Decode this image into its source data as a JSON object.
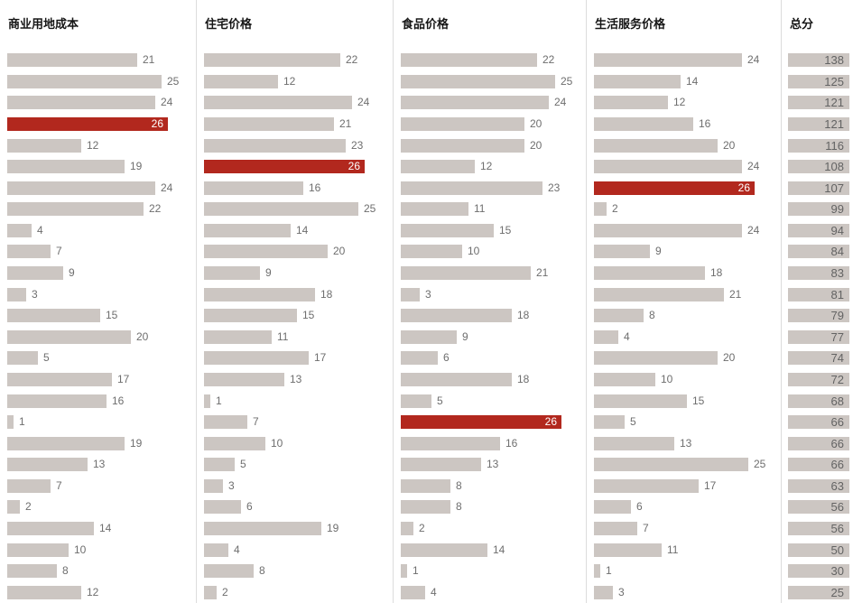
{
  "chart_data": {
    "type": "bar",
    "layout": "small-multiples-horizontal-ranking",
    "orientation": "horizontal",
    "grid": false,
    "legend": false,
    "max_value": 26,
    "highlight_value": 26,
    "bar_color": "#ccc6c2",
    "highlight_color": "#b2281e",
    "row_count": 26,
    "columns": [
      {
        "title": "商业用地成本",
        "values": [
          21,
          25,
          24,
          26,
          12,
          19,
          24,
          22,
          4,
          7,
          9,
          3,
          15,
          20,
          5,
          17,
          16,
          1,
          19,
          13,
          7,
          2,
          14,
          10,
          8,
          12
        ]
      },
      {
        "title": "住宅价格",
        "values": [
          22,
          12,
          24,
          21,
          23,
          26,
          16,
          25,
          14,
          20,
          9,
          18,
          15,
          11,
          17,
          13,
          1,
          7,
          10,
          5,
          3,
          6,
          19,
          4,
          8,
          2
        ]
      },
      {
        "title": "食品价格",
        "values": [
          22,
          25,
          24,
          20,
          20,
          12,
          23,
          11,
          15,
          10,
          21,
          3,
          18,
          9,
          6,
          18,
          5,
          26,
          16,
          13,
          8,
          8,
          2,
          14,
          1,
          4
        ]
      },
      {
        "title": "生活服务价格",
        "values": [
          24,
          14,
          12,
          16,
          20,
          24,
          26,
          2,
          24,
          9,
          18,
          21,
          8,
          4,
          20,
          10,
          15,
          5,
          13,
          25,
          17,
          6,
          7,
          11,
          1,
          3
        ]
      }
    ],
    "totals": {
      "title": "总分",
      "values": [
        138,
        125,
        121,
        121,
        116,
        108,
        107,
        99,
        94,
        84,
        83,
        81,
        79,
        77,
        74,
        72,
        68,
        66,
        66,
        66,
        63,
        56,
        56,
        50,
        30,
        25
      ]
    }
  }
}
